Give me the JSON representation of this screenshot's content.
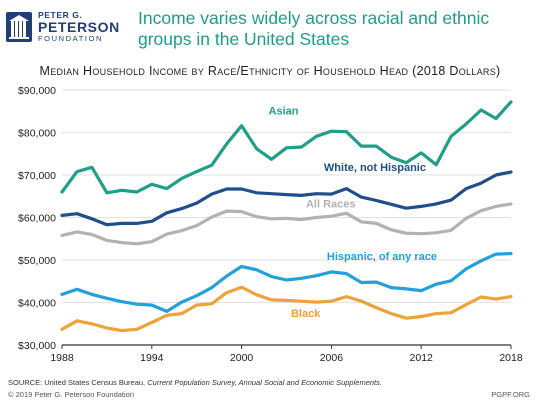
{
  "branding": {
    "line1": "PETER G.",
    "line2": "PETERSON",
    "line3": "FOUNDATION",
    "mark_icon": "torch-icon",
    "color": "#1f3f76"
  },
  "headline": "Income varies widely across racial and ethnic groups in the United States",
  "footer": {
    "source_prefix": "SOURCE: United States Census Bureau, ",
    "source_italic": "Current Population Survey, Annual Social and Economic Supplements.",
    "copyright": "© 2019 Peter G. Peterson Foundation",
    "site": "PGPF.ORG"
  },
  "chart_data": {
    "type": "line",
    "title": "Median Household Income by Race/Ethnicity of Household Head (2018 Dollars)",
    "x": [
      1988,
      1989,
      1990,
      1991,
      1992,
      1993,
      1994,
      1995,
      1996,
      1997,
      1998,
      1999,
      2000,
      2001,
      2002,
      2003,
      2004,
      2005,
      2006,
      2007,
      2008,
      2009,
      2010,
      2011,
      2012,
      2013,
      2014,
      2015,
      2016,
      2017,
      2018
    ],
    "xticks": [
      1988,
      1994,
      2000,
      2006,
      2012,
      2018
    ],
    "xlim": [
      1988,
      2018
    ],
    "ylim": [
      30000,
      90000
    ],
    "yticks": [
      30000,
      40000,
      50000,
      60000,
      70000,
      80000,
      90000
    ],
    "ytick_labels": [
      "$30,000",
      "$40,000",
      "$50,000",
      "$60,000",
      "$70,000",
      "$80,000",
      "$90,000"
    ],
    "grid": "horizontal",
    "series": [
      {
        "name": "Asian",
        "color": "#1f9e8a",
        "values": [
          66000,
          70800,
          71800,
          65800,
          66400,
          66000,
          67800,
          66800,
          69200,
          70800,
          72300,
          77300,
          81600,
          76200,
          73700,
          76400,
          76600,
          79100,
          80300,
          80200,
          76800,
          76800,
          74200,
          72900,
          75200,
          72400,
          79100,
          82000,
          85300,
          83300,
          87200
        ]
      },
      {
        "name": "White, not Hispanic",
        "color": "#1f4f8a",
        "values": [
          60500,
          60900,
          59700,
          58300,
          58600,
          58600,
          59100,
          61100,
          62100,
          63400,
          65500,
          66700,
          66700,
          65800,
          65600,
          65400,
          65200,
          65600,
          65500,
          66800,
          64800,
          64000,
          63100,
          62200,
          62600,
          63200,
          64100,
          66800,
          68100,
          70000,
          70700
        ]
      },
      {
        "name": "All Races",
        "color": "#b2b2b2",
        "values": [
          55800,
          56600,
          56000,
          54600,
          54100,
          53800,
          54300,
          56100,
          56900,
          58100,
          60100,
          61500,
          61400,
          60200,
          59700,
          59800,
          59500,
          60000,
          60300,
          61000,
          59000,
          58600,
          57100,
          56300,
          56200,
          56400,
          57000,
          59800,
          61600,
          62600,
          63200
        ]
      },
      {
        "name": "Hispanic, of any race",
        "color": "#23a0dc",
        "values": [
          41900,
          43100,
          41900,
          41000,
          40200,
          39600,
          39400,
          37900,
          40100,
          41600,
          43500,
          46200,
          48500,
          47700,
          46100,
          45300,
          45700,
          46300,
          47200,
          46800,
          44700,
          44800,
          43500,
          43200,
          42800,
          44300,
          45100,
          47900,
          49800,
          51400,
          51500
        ]
      },
      {
        "name": "Black",
        "color": "#eea23a",
        "values": [
          33700,
          35700,
          35000,
          34000,
          33400,
          33700,
          35300,
          37000,
          37400,
          39400,
          39700,
          42300,
          43600,
          41800,
          40600,
          40500,
          40300,
          40100,
          40300,
          41400,
          40300,
          38800,
          37400,
          36300,
          36700,
          37400,
          37600,
          39500,
          41300,
          40800,
          41400
        ]
      }
    ]
  }
}
